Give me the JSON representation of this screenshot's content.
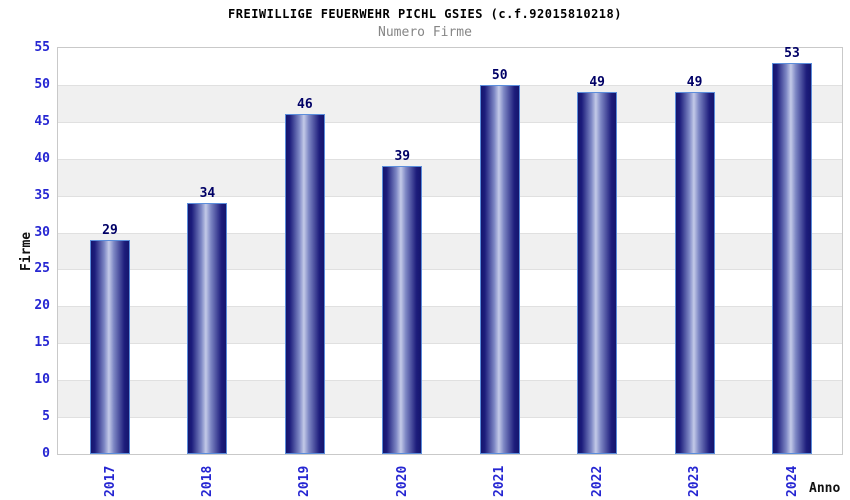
{
  "chart_data": {
    "type": "bar",
    "title": "FREIWILLIGE FEUERWEHR PICHL GSIES (c.f.92015810218)",
    "subtitle": "Numero Firme",
    "xlabel": "Anno",
    "ylabel": "Firme",
    "categories": [
      "2017",
      "2018",
      "2019",
      "2020",
      "2021",
      "2022",
      "2023",
      "2024"
    ],
    "values": [
      29,
      34,
      46,
      39,
      50,
      49,
      49,
      53
    ],
    "ylim": [
      0,
      55
    ],
    "ytick_step": 5,
    "yticks": [
      0,
      5,
      10,
      15,
      20,
      25,
      30,
      35,
      40,
      45,
      50,
      55
    ],
    "legend_position": "none",
    "grid": "horizontal gridlines every 5 with alternating white/gray bands",
    "bar_value_labels_shown": true,
    "colors": {
      "background": "#ffffff",
      "band_gray": "#f0f0f0",
      "band_white": "#ffffff",
      "grid_line": "#e0e0e0",
      "frame_border": "#c9c9c9",
      "bar_dark": "#15156d",
      "bar_mid": "#7d87c4",
      "bar_light": "#c3cae8",
      "bar_border": "#5b8ddb",
      "axis_tick_label": "#2626d2",
      "value_label": "#000066",
      "title_color": "#000000",
      "subtitle_color": "#868686",
      "axis_name_color": "#111111"
    }
  }
}
